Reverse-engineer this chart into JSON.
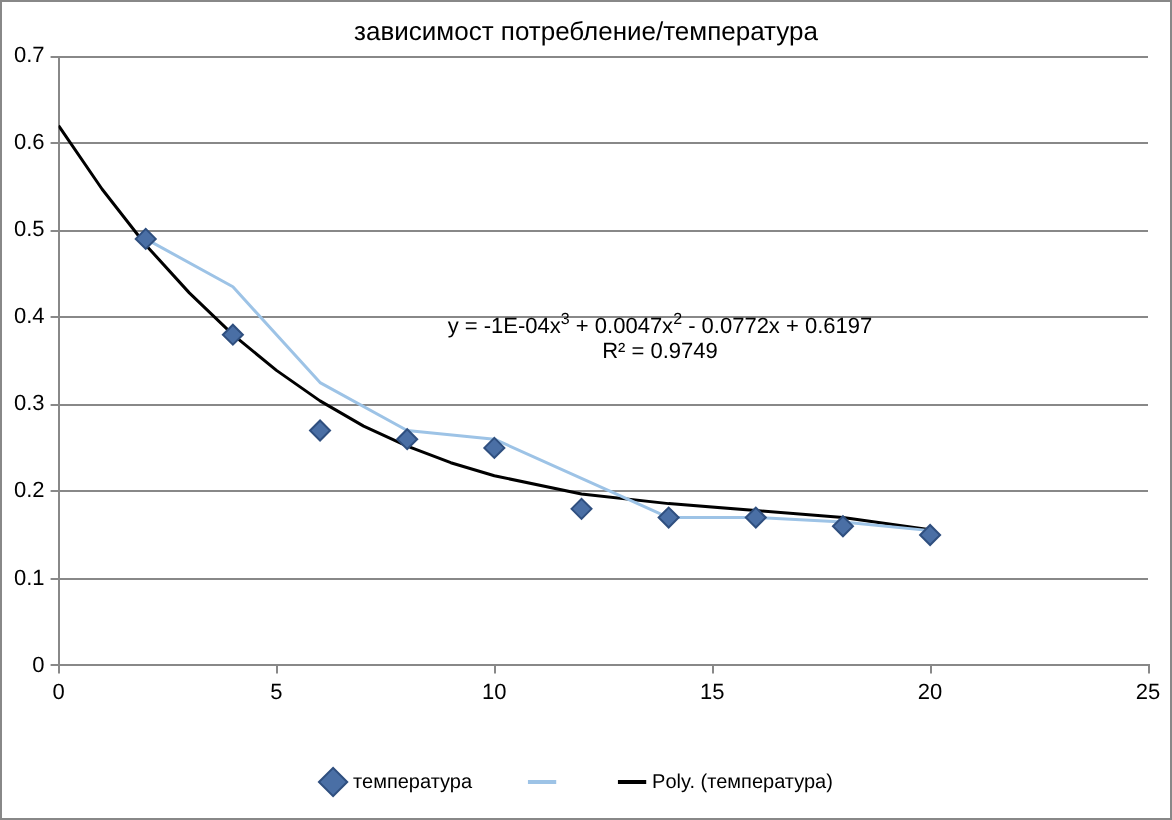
{
  "chart_data": {
    "type": "scatter",
    "title": "зависимост потребление/температура",
    "xlim": [
      0,
      25
    ],
    "xticks": [
      0,
      5,
      10,
      15,
      20,
      25
    ],
    "ylim": [
      0,
      0.7
    ],
    "yticks": [
      0,
      0.1,
      0.2,
      0.3,
      0.4,
      0.5,
      0.6,
      0.7
    ],
    "grid": "y",
    "legend": "bottom",
    "series": [
      {
        "name": "температура",
        "type": "scatter",
        "marker": "diamond",
        "color": "#4a6fa5",
        "x": [
          2,
          4,
          6,
          8,
          10,
          12,
          14,
          16,
          18,
          20
        ],
        "values": [
          0.49,
          0.38,
          0.27,
          0.26,
          0.25,
          0.18,
          0.17,
          0.17,
          0.16,
          0.15
        ]
      },
      {
        "type": "line",
        "marker": "none",
        "color": "#9dc3e6",
        "x": [
          2,
          4,
          6,
          8,
          10,
          12,
          14,
          16,
          18,
          20
        ],
        "values": [
          0.49,
          0.435,
          0.325,
          0.27,
          0.26,
          0.215,
          0.17,
          0.17,
          0.165,
          0.155
        ]
      },
      {
        "name": "Poly. (температура)",
        "type": "line",
        "marker": "none",
        "color": "#000000",
        "x": [
          0,
          1,
          2,
          3,
          4,
          5,
          6,
          7,
          8,
          9,
          10,
          12,
          14,
          16,
          18,
          20
        ],
        "values": [
          0.62,
          0.547,
          0.483,
          0.428,
          0.38,
          0.339,
          0.304,
          0.275,
          0.252,
          0.233,
          0.218,
          0.197,
          0.186,
          0.178,
          0.17,
          0.156
        ]
      }
    ],
    "annotations": [
      "y = -1E-04x$^{3}$ + 0.0047x$^{2}$ - 0.0772x + 0.6197",
      "R² = 0.9749"
    ]
  }
}
